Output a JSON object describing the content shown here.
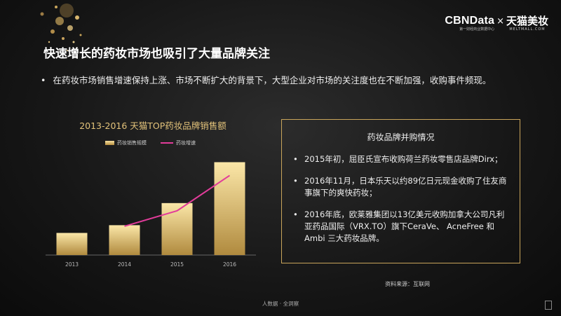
{
  "brand": {
    "name": "CBNData",
    "subtitle": "第一财经商业数据中心",
    "separator": "×",
    "partner": "天猫美妆",
    "partner_url": "MELTMALL.COM"
  },
  "slide": {
    "title": "快速增长的药妆市场也吸引了大量品牌关注",
    "bullet": "在药妆市场销售增速保持上涨、市场不断扩大的背景下，大型企业对市场的关注度也在不断加强，收购事件频现。"
  },
  "chart_data": {
    "type": "bar",
    "title": "2013-2016 天猫TOP药妆品牌销售额",
    "categories": [
      "2013",
      "2014",
      "2015",
      "2016"
    ],
    "series": [
      {
        "name": "药妆销售规模",
        "type": "bar",
        "values": [
          1.0,
          1.35,
          2.35,
          4.2
        ]
      },
      {
        "name": "药妆增速",
        "type": "line",
        "values": [
          null,
          1.3,
          2.0,
          3.6
        ]
      }
    ],
    "ylim": [
      0,
      4.5
    ],
    "grid": false,
    "legend": "top",
    "colors": {
      "bar": "#d9b468",
      "line": "#e23c9a"
    }
  },
  "info_box": {
    "title": "药妆品牌并购情况",
    "items": [
      "2015年初，屈臣氏宣布收购荷兰药妆零售店品牌Dirx；",
      "2016年11月，日本乐天以约89亿日元现金收购了住友商事旗下的爽快药妆；",
      "2016年底，欧莱雅集团以13亿美元收购加拿大公司凡利亚药品国际（VRX.TO）旗下CeraVe、 AcneFree 和Ambi 三大药妆品牌。"
    ]
  },
  "source": "资料来源：互联网",
  "footer": "人数据 · 全洞察",
  "colors": {
    "accent_gold": "#c9a55b",
    "background": "#161616"
  }
}
